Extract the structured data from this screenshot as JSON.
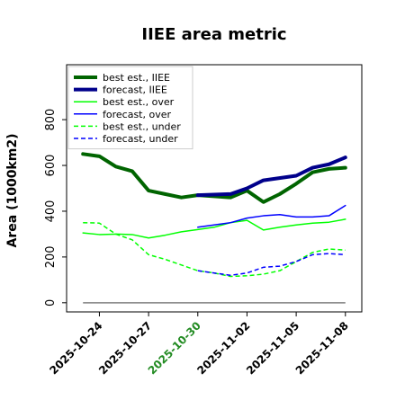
{
  "chart_data": {
    "type": "line",
    "title": "IIEE area metric",
    "xlabel": "",
    "ylabel": "Area (1000km2)",
    "ylim": [
      -40,
      1040
    ],
    "yticks": [
      0,
      200,
      400,
      600,
      800
    ],
    "xlim": [
      "2025-10-22",
      "2025-11-09"
    ],
    "xticks": [
      "2025-10-24",
      "2025-10-27",
      "2025-10-30",
      "2025-11-02",
      "2025-11-05",
      "2025-11-08"
    ],
    "xtick_colors": [
      "#000000",
      "#000000",
      "#228B22",
      "#000000",
      "#000000",
      "#000000"
    ],
    "legend_position": "upper left",
    "grid": false,
    "baseline": {
      "y": 0,
      "color": "#808080"
    },
    "series": [
      {
        "name": "best est., IIEE",
        "color": "#006400",
        "style": "solid",
        "width": 4,
        "x": [
          "2025-10-23",
          "2025-10-24",
          "2025-10-25",
          "2025-10-26",
          "2025-10-27",
          "2025-10-28",
          "2025-10-29",
          "2025-10-30",
          "2025-10-31",
          "2025-11-01",
          "2025-11-02",
          "2025-11-03",
          "2025-11-04",
          "2025-11-05",
          "2025-11-06",
          "2025-11-07",
          "2025-11-08"
        ],
        "values": [
          650,
          640,
          595,
          575,
          490,
          475,
          460,
          470,
          465,
          460,
          490,
          440,
          475,
          520,
          570,
          585,
          590
        ]
      },
      {
        "name": "forecast, IIEE",
        "color": "#00008B",
        "style": "solid",
        "width": 4,
        "x": [
          "2025-10-30",
          "2025-11-01",
          "2025-11-02",
          "2025-11-03",
          "2025-11-05",
          "2025-11-06",
          "2025-11-07",
          "2025-11-08"
        ],
        "values": [
          470,
          475,
          500,
          535,
          555,
          590,
          605,
          635
        ]
      },
      {
        "name": "best est., over",
        "color": "#00FF00",
        "style": "solid",
        "width": 1.5,
        "x": [
          "2025-10-23",
          "2025-10-24",
          "2025-10-25",
          "2025-10-26",
          "2025-10-27",
          "2025-10-28",
          "2025-10-29",
          "2025-10-30",
          "2025-10-31",
          "2025-11-01",
          "2025-11-02",
          "2025-11-03",
          "2025-11-04",
          "2025-11-05",
          "2025-11-06",
          "2025-11-07",
          "2025-11-08"
        ],
        "values": [
          305,
          298,
          300,
          298,
          283,
          295,
          310,
          320,
          330,
          350,
          360,
          318,
          330,
          340,
          348,
          352,
          365
        ]
      },
      {
        "name": "forecast, over",
        "color": "#0000FF",
        "style": "solid",
        "width": 1.5,
        "x": [
          "2025-10-30",
          "2025-11-01",
          "2025-11-02",
          "2025-11-03",
          "2025-11-04",
          "2025-11-05",
          "2025-11-06",
          "2025-11-07",
          "2025-11-08"
        ],
        "values": [
          330,
          350,
          370,
          380,
          385,
          375,
          375,
          380,
          425
        ]
      },
      {
        "name": "best est., under",
        "color": "#00FF00",
        "style": "dashed",
        "width": 1.5,
        "x": [
          "2025-10-23",
          "2025-10-24",
          "2025-10-25",
          "2025-10-26",
          "2025-10-27",
          "2025-10-28",
          "2025-10-29",
          "2025-10-30",
          "2025-10-31",
          "2025-11-01",
          "2025-11-02",
          "2025-11-03",
          "2025-11-04",
          "2025-11-05",
          "2025-11-06",
          "2025-11-07",
          "2025-11-08"
        ],
        "values": [
          350,
          348,
          300,
          275,
          210,
          190,
          165,
          140,
          130,
          115,
          118,
          125,
          140,
          180,
          220,
          235,
          230
        ]
      },
      {
        "name": "forecast, under",
        "color": "#0000FF",
        "style": "dashed",
        "width": 1.5,
        "x": [
          "2025-10-30",
          "2025-10-31",
          "2025-11-01",
          "2025-11-02",
          "2025-11-03",
          "2025-11-04",
          "2025-11-05",
          "2025-11-06",
          "2025-11-07",
          "2025-11-08"
        ],
        "values": [
          140,
          130,
          120,
          130,
          155,
          160,
          180,
          210,
          215,
          210
        ]
      }
    ]
  }
}
